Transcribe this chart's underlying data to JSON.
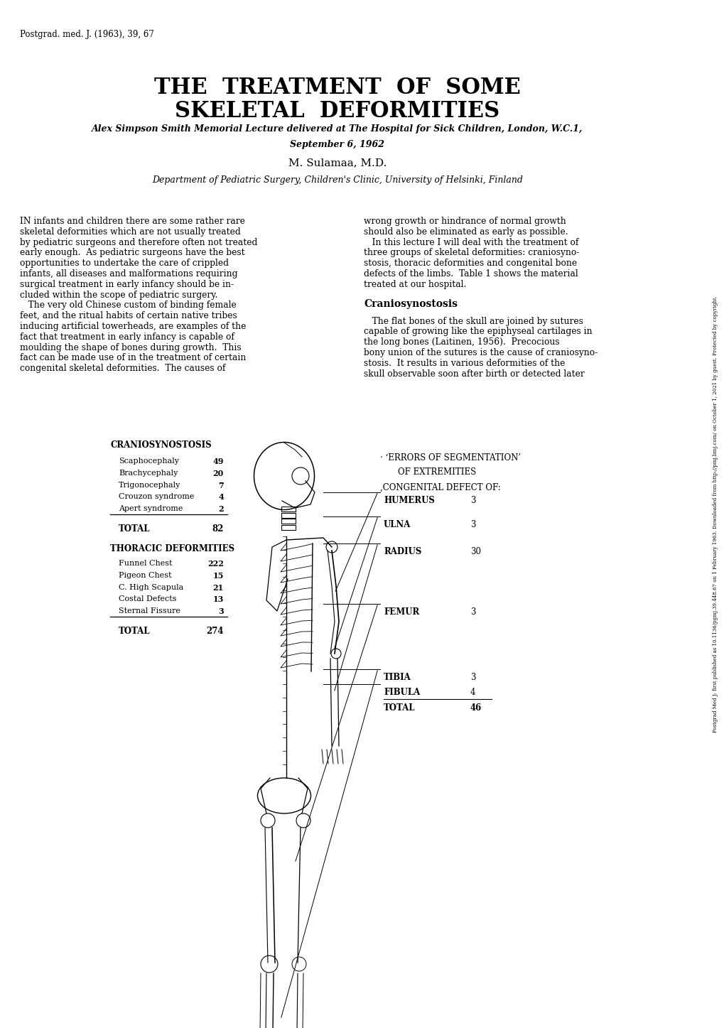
{
  "bg_color": "#ffffff",
  "page_width": 10.2,
  "page_height": 14.47,
  "header_journal": "Postgrad. med. J. (1963), 39, 67",
  "title_line1": "THE  TREATMENT  OF  SOME",
  "title_line2": "SKELETAL  DEFORMITIES",
  "subtitle_line1": "Alex Simpson Smith Memorial Lecture delivered at The Hospital for Sick Children, London, W.C.1,",
  "subtitle_line2": "September 6, 1962",
  "author": "M. Sulamaa, M.D.",
  "affiliation": "Department of Pediatric Surgery, Children's Clinic, University of Helsinki, Finland",
  "body_col1_lines": [
    "IN infants and children there are some rather rare",
    "skeletal deformities which are not usually treated",
    "by pediatric surgeons and therefore often not treated",
    "early enough.  As pediatric surgeons have the best",
    "opportunities to undertake the care of crippled",
    "infants, all diseases and malformations requiring",
    "surgical treatment in early infancy should be in-",
    "cluded within the scope of pediatric surgery.",
    "   The very old Chinese custom of binding female",
    "feet, and the ritual habits of certain native tribes",
    "inducing artificial towerheads, are examples of the",
    "fact that treatment in early infancy is capable of",
    "moulding the shape of bones during growth.  This",
    "fact can be made use of in the treatment of certain",
    "congenital skeletal deformities.  The causes of"
  ],
  "body_col2_lines": [
    "wrong growth or hindrance of normal growth",
    "should also be eliminated as early as possible.",
    "   In this lecture I will deal with the treatment of",
    "three groups of skeletal deformities: craniosyno-",
    "stosis, thoracic deformities and congenital bone",
    "defects of the limbs.  Table 1 shows the material",
    "treated at our hospital."
  ],
  "cranio_section_head": "Craniosynostosis",
  "cranio_body_lines": [
    "   The flat bones of the skull are joined by sutures",
    "capable of growing like the epiphyseal cartilages in",
    "the long bones (Laitinen, 1956).  Precocious",
    "bony union of the sutures is the cause of craniosyno-",
    "stosis.  It results in various deformities of the",
    "skull observable soon after birth or detected later"
  ],
  "table_cranio_title": "CRANIOSYNOSTOSIS",
  "table_cranio_rows": [
    [
      "Scaphocephaly",
      "49"
    ],
    [
      "Brachycephaly",
      "20"
    ],
    [
      "Trigonocephaly",
      "7"
    ],
    [
      "Crouzon syndrome",
      "4"
    ],
    [
      "Apert syndrome",
      "2"
    ]
  ],
  "table_cranio_total_label": "TOTAL",
  "table_cranio_total_val": "82",
  "table_thoracic_title": "THORACIC DEFORMITIES",
  "table_thoracic_rows": [
    [
      "Funnel Chest",
      "222"
    ],
    [
      "Pigeon Chest",
      "15"
    ],
    [
      "C. High Scapula",
      "21"
    ],
    [
      "Costal Defects",
      "13"
    ],
    [
      "Sternal Fissure",
      "3"
    ]
  ],
  "table_thoracic_total_label": "TOTAL",
  "table_thoracic_total_val": "274",
  "errors_line1": "· ‘ERRORS OF SEGMENTATION’",
  "errors_line2": "OF EXTREMITIES",
  "congenital_line": ",CONGENITAL DEFECT OF:",
  "limb_rows": [
    [
      "HUMERUS",
      "3"
    ],
    [
      "ULNA",
      "3"
    ],
    [
      "RADIUS",
      "30"
    ],
    [
      "FEMUR",
      "3"
    ],
    [
      "TIBIA",
      "3"
    ],
    [
      "FIBULA",
      "4"
    ]
  ],
  "limb_total_label": "TOTAL",
  "limb_total_val": "46",
  "side_text": "Postgrad Med J: first published as 10.1136/pgmj.39.448.67 on 1 February 1963. Downloaded from http://pmj.bmj.com/ on October 1, 2021 by guest. Protected by copyright."
}
